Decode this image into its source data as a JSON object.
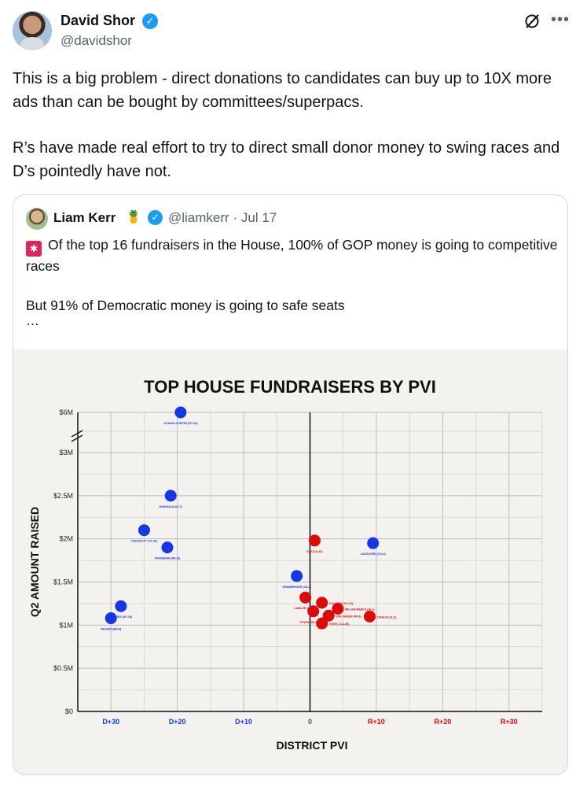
{
  "tweet": {
    "author_name": "David Shor",
    "author_handle": "@davidshor",
    "paragraphs": [
      "This is a big problem - direct donations to candidates can buy up to 10X more ads than can be bought by committees/superpacs.",
      "R’s have made real effort to try to direct small donor money to swing races and D’s pointedly have not."
    ],
    "icons": {
      "verified": "verified-badge-icon",
      "grok": "grok-icon",
      "more": "more-icon"
    }
  },
  "quote": {
    "author_name": "Liam Kerr",
    "author_emoji": "🍍",
    "author_handle": "@liamkerr",
    "date_separator": "·",
    "date": "Jul 17",
    "line1": "Of the top 16 fundraisers in the House, 100% of GOP money is going to competitive races",
    "line2": "But 91% of Democratic money is going to safe seats",
    "ellipsis": "…",
    "icons": {
      "alarm": "siren-icon"
    }
  },
  "colors": {
    "dem": "#1737e6",
    "gop": "#dd0a0a",
    "verified": "#1d9bf0"
  },
  "chart_data": {
    "type": "scatter",
    "title": "TOP HOUSE FUNDRAISERS BY PVI",
    "xlabel": "DISTRICT PVI",
    "ylabel": "Q2 AMOUNT RAISED",
    "xlim": [
      -35,
      35
    ],
    "x_ticks": [
      {
        "v": -30,
        "label": "D+30",
        "color": "#1737e6"
      },
      {
        "v": -20,
        "label": "D+20",
        "color": "#1737e6"
      },
      {
        "v": -10,
        "label": "D+10",
        "color": "#1737e6"
      },
      {
        "v": 0,
        "label": "0",
        "color": "#555555"
      },
      {
        "v": 10,
        "label": "R+10",
        "color": "#dd0a0a"
      },
      {
        "v": 20,
        "label": "R+20",
        "color": "#dd0a0a"
      },
      {
        "v": 30,
        "label": "R+30",
        "color": "#dd0a0a"
      }
    ],
    "y_ticks": [
      {
        "v": 0,
        "label": "$0"
      },
      {
        "v": 0.5,
        "label": "$0.5M"
      },
      {
        "v": 1.0,
        "label": "$1M"
      },
      {
        "v": 1.5,
        "label": "$1.5M"
      },
      {
        "v": 2.0,
        "label": "$2M"
      },
      {
        "v": 2.5,
        "label": "$2.5M"
      },
      {
        "v": 3.0,
        "label": "$3M"
      },
      {
        "v": 6.0,
        "label": "$6M"
      }
    ],
    "y_axis_break": "between $3M and $6M",
    "grid": true,
    "series": [
      {
        "party": "D",
        "points": [
          {
            "label": "OCASIO-CORTEZ (NY-14)",
            "x": -19.5,
            "y": 6.0
          },
          {
            "label": "KHANNA (CA-17)",
            "x": -21,
            "y": 2.5
          },
          {
            "label": "CROCKETT (TX-30)",
            "x": -25,
            "y": 2.1
          },
          {
            "label": "THANEDAR (MI-13)",
            "x": -21.5,
            "y": 1.9
          },
          {
            "label": "TORRES (NY-15)",
            "x": -28.5,
            "y": 1.22
          },
          {
            "label": "RASKIN (MD-8)",
            "x": -30,
            "y": 1.08
          },
          {
            "label": "SPANBERGER (VA-7)",
            "x": -2,
            "y": 1.57
          },
          {
            "label": "LAUSCHEK (CO-8)",
            "x": 9.5,
            "y": 1.95
          }
        ]
      },
      {
        "party": "R",
        "points": [
          {
            "label": "KIM (CA-40)",
            "x": 0.7,
            "y": 1.98
          },
          {
            "label": "LAWLER (NY-17)",
            "x": -0.7,
            "y": 1.32
          },
          {
            "label": "CALVERT (CA-41)",
            "x": 1.8,
            "y": 1.26
          },
          {
            "label": "FITZPATRICK (PA-1)",
            "x": 0.5,
            "y": 1.16
          },
          {
            "label": "MILLER-MEEKS (IA-1)",
            "x": 4.2,
            "y": 1.19
          },
          {
            "label": "VAN ORDEN (WI-3)",
            "x": 2.8,
            "y": 1.11
          },
          {
            "label": "CIANCALIA (1)",
            "x": 9,
            "y": 1.1
          },
          {
            "label": "STEEL (CA-45)",
            "x": 1.8,
            "y": 1.02
          }
        ]
      }
    ]
  }
}
